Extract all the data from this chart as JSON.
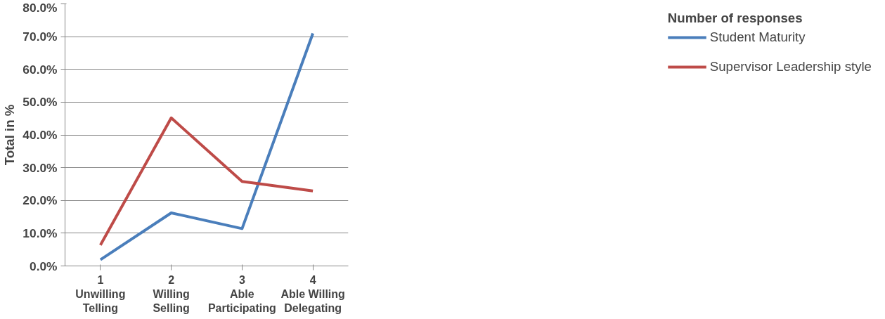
{
  "chart_data": {
    "type": "line",
    "ylabel": "Total in %",
    "legend_title": "Number of responses",
    "legend": "right",
    "categories": [
      "1\nUnwilling\nTelling",
      "2\nWilling\nSelling",
      "3\nAble\nParticipating",
      "4\nAble Willing\nDelegating"
    ],
    "series": [
      {
        "name": "Student Maturity",
        "color": "#4a7ebb",
        "values": [
          1.9,
          16.2,
          11.4,
          71.0
        ]
      },
      {
        "name": "Supervisor Leadership style",
        "color": "#be4b48",
        "values": [
          6.4,
          45.2,
          25.8,
          22.9
        ]
      }
    ],
    "ylim": [
      0,
      80
    ],
    "yticks": [
      {
        "value": 0,
        "label": "0.0%"
      },
      {
        "value": 10,
        "label": "10.0%"
      },
      {
        "value": 20,
        "label": "20.0%"
      },
      {
        "value": 30,
        "label": "30.0%"
      },
      {
        "value": 40,
        "label": "40.0%"
      },
      {
        "value": 50,
        "label": "50.0%"
      },
      {
        "value": 60,
        "label": "60.0%"
      },
      {
        "value": 70,
        "label": "70.0%"
      },
      {
        "value": 80,
        "label": "80.0%"
      }
    ],
    "grid": "y",
    "marker": "none",
    "line_style": "solid"
  }
}
